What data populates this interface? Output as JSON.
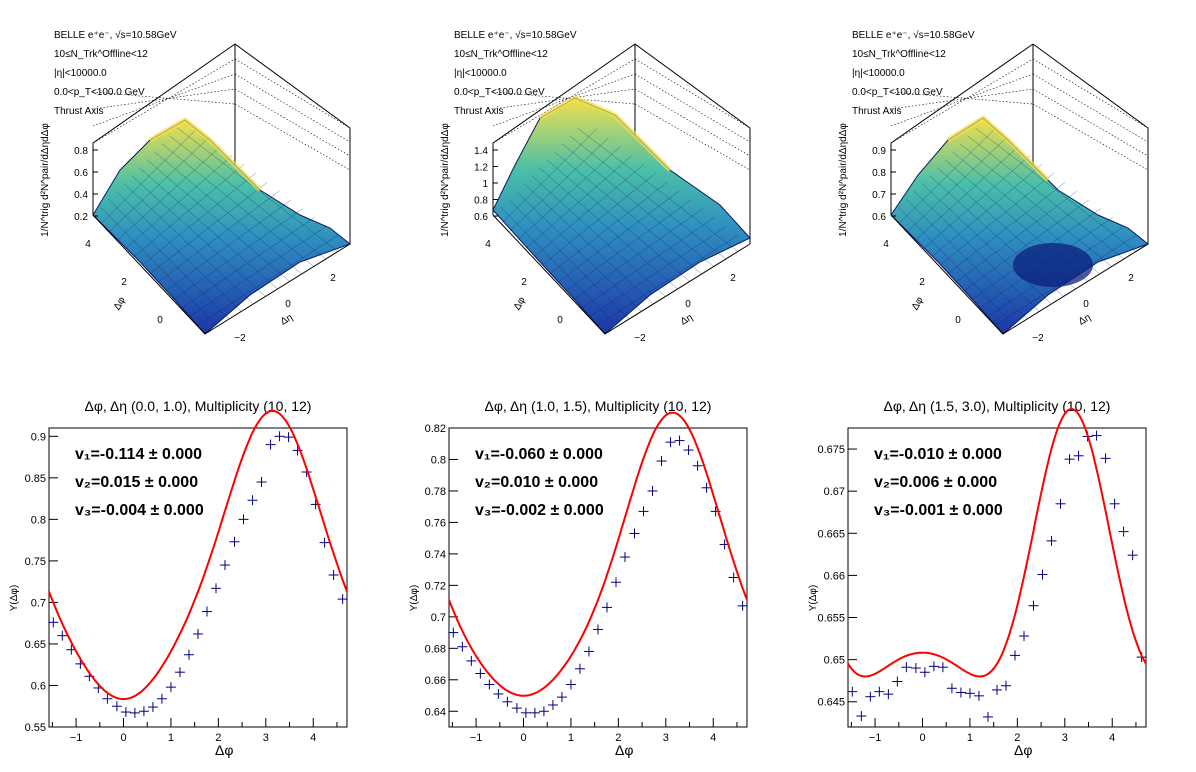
{
  "colors": {
    "fit_line": "#ff0000",
    "points": "#00007f",
    "surface_low": "#1f3fb0",
    "surface_mid": "#38b0b0",
    "surface_high": "#f6e04a"
  },
  "surface_panels": [
    {
      "info": [
        "BELLE e⁺e⁻, √s=10.58GeV",
        "10≤N_Trk^Offline<12",
        "|η|<10000.0",
        "0.0<p_T<100.0 GeV",
        "Thrust Axis"
      ],
      "z_ticks": [
        "0.2",
        "0.4",
        "0.6",
        "0.8"
      ],
      "z_label": "1/N^trig d²N^pair/dΔηdΔφ",
      "phi_ticks": [
        "0",
        "2",
        "4"
      ],
      "phi_label": "Δφ",
      "eta_ticks": [
        "−2",
        "0",
        "2"
      ],
      "eta_label": "Δη",
      "shape": "single_ridge"
    },
    {
      "info": [
        "BELLE e⁺e⁻, √s=10.58GeV",
        "10≤N_Trk^Offline<12",
        "|η|<10000.0",
        "0.0<p_T<100.0 GeV",
        "Thrust Axis"
      ],
      "z_ticks": [
        "0.6",
        "0.8",
        "1",
        "1.2",
        "1.4"
      ],
      "z_label": "1/N^trig d²N^pair/dΔηdΔφ",
      "phi_ticks": [
        "0",
        "2",
        "4"
      ],
      "phi_label": "Δφ",
      "eta_ticks": [
        "−2",
        "0",
        "2"
      ],
      "eta_label": "Δη",
      "shape": "wide_ridge"
    },
    {
      "info": [
        "BELLE e⁺e⁻, √s=10.58GeV",
        "10≤N_Trk^Offline<12",
        "|η|<10000.0",
        "0.0<p_T<100.0 GeV",
        "Thrust Axis"
      ],
      "z_ticks": [
        "0.6",
        "0.7",
        "0.8",
        "0.9"
      ],
      "z_label": "1/N^trig d²N^pair/dΔηdΔφ",
      "phi_ticks": [
        "0",
        "2",
        "4"
      ],
      "phi_label": "Δφ",
      "eta_ticks": [
        "−2",
        "0",
        "2"
      ],
      "eta_label": "Δη",
      "shape": "ridge_with_dip"
    }
  ],
  "chart_data": [
    {
      "type": "scatter",
      "title": "Δφ, Δη (0.0, 1.0), Multiplicity (10, 12)",
      "xlabel": "Δφ",
      "ylabel": "Y(Δφ)",
      "xlim": [
        -1.571,
        4.712
      ],
      "ylim": [
        0.55,
        0.91
      ],
      "xticks": [
        -1,
        0,
        1,
        2,
        3,
        4
      ],
      "yticks": [
        0.55,
        0.6,
        0.65,
        0.7,
        0.75,
        0.8,
        0.85,
        0.9
      ],
      "ytick_labels": [
        "0.55",
        "0.6",
        "0.65",
        "0.7",
        "0.75",
        "0.8",
        "0.85",
        "0.9"
      ],
      "fit": {
        "c": 0.73505,
        "v1": -0.114,
        "v2": 0.015,
        "v3": -0.004,
        "label": [
          "v₁=-0.114 ± 0.000",
          "v₂=0.015 ± 0.000",
          "v₃=-0.004 ± 0.000"
        ]
      },
      "x": [
        -1.48,
        -1.29,
        -1.1,
        -0.91,
        -0.72,
        -0.53,
        -0.34,
        -0.14,
        0.05,
        0.24,
        0.43,
        0.62,
        0.81,
        1.0,
        1.19,
        1.38,
        1.57,
        1.76,
        1.95,
        2.14,
        2.34,
        2.53,
        2.72,
        2.91,
        3.1,
        3.29,
        3.48,
        3.67,
        3.86,
        4.05,
        4.24,
        4.43,
        4.62
      ],
      "y": [
        0.676,
        0.66,
        0.643,
        0.626,
        0.611,
        0.597,
        0.584,
        0.575,
        0.568,
        0.567,
        0.569,
        0.574,
        0.584,
        0.598,
        0.616,
        0.637,
        0.662,
        0.689,
        0.717,
        0.745,
        0.773,
        0.8,
        0.823,
        0.845,
        0.89,
        0.9,
        0.899,
        0.883,
        0.857,
        0.818,
        0.772,
        0.733,
        0.704
      ]
    },
    {
      "type": "scatter",
      "title": "Δφ, Δη (1.0, 1.5), Multiplicity (10, 12)",
      "xlabel": "Δφ",
      "ylabel": "Y(Δφ)",
      "xlim": [
        -1.571,
        4.712
      ],
      "ylim": [
        0.63,
        0.82
      ],
      "xticks": [
        -1,
        0,
        1,
        2,
        3,
        4
      ],
      "yticks": [
        0.64,
        0.66,
        0.68,
        0.7,
        0.72,
        0.74,
        0.76,
        0.78,
        0.8,
        0.82
      ],
      "ytick_labels": [
        "0.64",
        "0.66",
        "0.68",
        "0.7",
        "0.72",
        "0.74",
        "0.76",
        "0.78",
        "0.8",
        "0.82"
      ],
      "fit": {
        "c": 0.7253,
        "v1": -0.06,
        "v2": 0.01,
        "v3": -0.002,
        "label": [
          "v₁=-0.060 ± 0.000",
          "v₂=0.010 ± 0.000",
          "v₃=-0.002 ± 0.000"
        ]
      },
      "x": [
        -1.48,
        -1.29,
        -1.1,
        -0.91,
        -0.72,
        -0.53,
        -0.34,
        -0.14,
        0.05,
        0.24,
        0.43,
        0.62,
        0.81,
        1.0,
        1.19,
        1.38,
        1.57,
        1.76,
        1.95,
        2.14,
        2.34,
        2.53,
        2.72,
        2.91,
        3.1,
        3.29,
        3.48,
        3.67,
        3.86,
        4.05,
        4.24,
        4.43,
        4.62
      ],
      "y": [
        0.69,
        0.681,
        0.672,
        0.664,
        0.657,
        0.651,
        0.646,
        0.642,
        0.639,
        0.639,
        0.64,
        0.644,
        0.649,
        0.657,
        0.667,
        0.678,
        0.692,
        0.706,
        0.722,
        0.738,
        0.753,
        0.767,
        0.78,
        0.799,
        0.811,
        0.812,
        0.806,
        0.796,
        0.782,
        0.767,
        0.746,
        0.725,
        0.707
      ]
    },
    {
      "type": "scatter",
      "title": "Δφ, Δη (1.5, 3.0), Multiplicity (10, 12)",
      "xlabel": "Δφ",
      "ylabel": "Y(Δφ)",
      "xlim": [
        -1.571,
        4.712
      ],
      "ylim": [
        0.642,
        0.6775
      ],
      "xticks": [
        -1,
        0,
        1,
        2,
        3,
        4
      ],
      "yticks": [
        0.645,
        0.65,
        0.655,
        0.66,
        0.665,
        0.67,
        0.675
      ],
      "ytick_labels": [
        "0.645",
        "0.65",
        "0.655",
        "0.66",
        "0.665",
        "0.67",
        "0.675"
      ],
      "fit": {
        "c": 0.6574,
        "v1": -0.01,
        "v2": 0.006,
        "v3": -0.001,
        "label": [
          "v₁=-0.010 ± 0.000",
          "v₂=0.006 ± 0.000",
          "v₃=-0.001 ± 0.000"
        ]
      },
      "x": [
        -1.48,
        -1.29,
        -1.1,
        -0.91,
        -0.72,
        -0.53,
        -0.34,
        -0.14,
        0.05,
        0.24,
        0.43,
        0.62,
        0.81,
        1.0,
        1.19,
        1.38,
        1.57,
        1.76,
        1.95,
        2.14,
        2.34,
        2.53,
        2.72,
        2.91,
        3.1,
        3.29,
        3.48,
        3.67,
        3.86,
        4.05,
        4.24,
        4.43,
        4.62
      ],
      "y": [
        0.6462,
        0.6433,
        0.6456,
        0.6462,
        0.6459,
        0.6474,
        0.6491,
        0.649,
        0.6485,
        0.6492,
        0.6491,
        0.6466,
        0.6461,
        0.646,
        0.6457,
        0.6432,
        0.6464,
        0.6469,
        0.6505,
        0.6528,
        0.6564,
        0.6601,
        0.6641,
        0.6685,
        0.6738,
        0.6742,
        0.6765,
        0.6766,
        0.6739,
        0.6685,
        0.6652,
        0.6624,
        0.6503
      ]
    }
  ]
}
